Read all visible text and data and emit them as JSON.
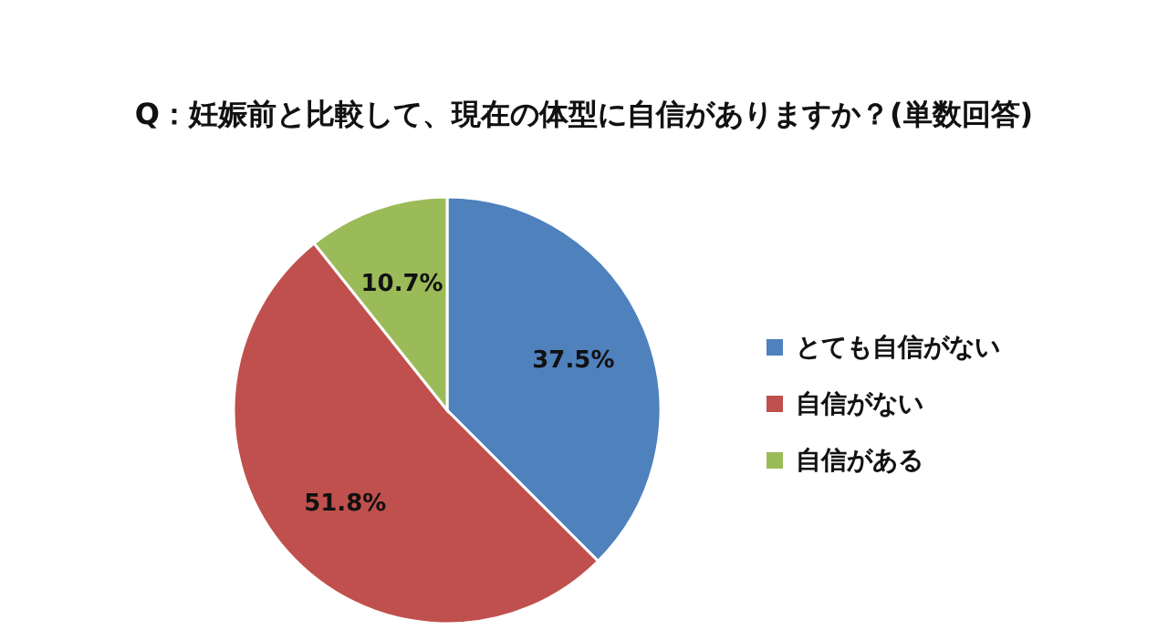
{
  "chart_data": {
    "type": "pie",
    "title": "Q：妊娠前と比較して、現在の体型に自信がありますか？(単数回答)",
    "categories": [
      "とても自信がない",
      "自信がない",
      "自信がある"
    ],
    "values": [
      37.5,
      51.8,
      10.7
    ],
    "colors": [
      "#4f81bd",
      "#c0504d",
      "#9bbb59"
    ],
    "value_labels": [
      "37.5%",
      "51.8%",
      "10.7%"
    ],
    "legend": "right"
  }
}
